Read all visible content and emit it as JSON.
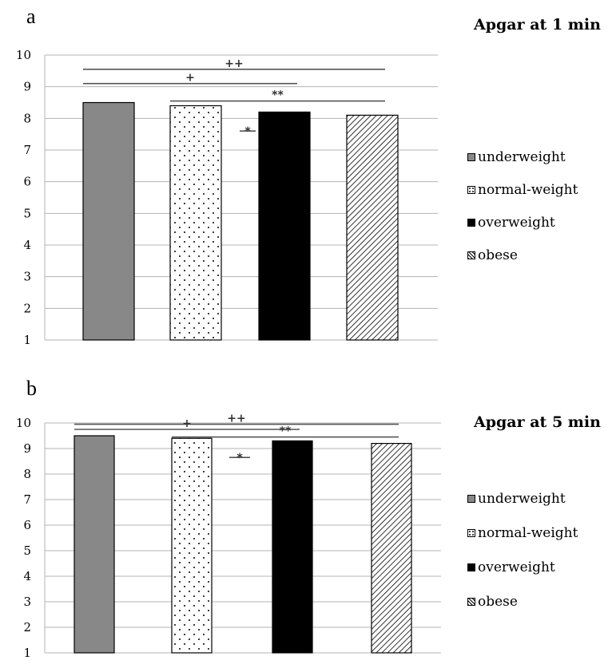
{
  "chart_data": [
    {
      "type": "bar",
      "panel_label": "a",
      "title": "Apgar at 1 min",
      "categories": [
        "underweight",
        "normal-weight",
        "overweight",
        "obese"
      ],
      "values": [
        8.5,
        8.4,
        8.2,
        8.1
      ],
      "ylim": [
        1,
        10
      ],
      "yticks": [
        "1",
        "2",
        "3",
        "4",
        "5",
        "6",
        "7",
        "8",
        "9",
        "10"
      ],
      "xlabel": "",
      "ylabel": "",
      "grid": true,
      "legend_position": "right",
      "legend": [
        "underweight",
        "normal-weight",
        "overweight",
        "obese"
      ],
      "fills": [
        "solid-gray",
        "dots",
        "solid-black",
        "diagonal-hatch"
      ],
      "colors": [
        "#888888",
        "#ffffff",
        "#000000",
        "#ffffff"
      ],
      "annotations": [
        {
          "text": "++",
          "from": "underweight",
          "to": "obese",
          "y": 9.55
        },
        {
          "text": "+",
          "from": "underweight",
          "to": "overweight",
          "y": 9.1
        },
        {
          "text": "**",
          "from": "normal-weight",
          "to": "obese",
          "y": 8.55
        },
        {
          "text": "*",
          "between": [
            "normal-weight",
            "overweight"
          ],
          "y": 7.6
        }
      ]
    },
    {
      "type": "bar",
      "panel_label": "b",
      "title": "Apgar at 5 min",
      "categories": [
        "underweight",
        "normal-weight",
        "overweight",
        "obese"
      ],
      "values": [
        9.5,
        9.4,
        9.3,
        9.2
      ],
      "ylim": [
        1,
        10
      ],
      "yticks": [
        "1",
        "2",
        "3",
        "4",
        "5",
        "6",
        "7",
        "8",
        "9",
        "10"
      ],
      "xlabel": "",
      "ylabel": "",
      "grid": true,
      "legend_position": "right",
      "legend": [
        "underweight",
        "normal-weight",
        "overweight",
        "obese"
      ],
      "fills": [
        "solid-gray",
        "dots",
        "solid-black",
        "diagonal-hatch"
      ],
      "colors": [
        "#888888",
        "#ffffff",
        "#000000",
        "#ffffff"
      ],
      "annotations": [
        {
          "text": "++",
          "from": "underweight",
          "to": "obese",
          "y": 9.95
        },
        {
          "text": "+",
          "from": "underweight",
          "to": "overweight",
          "y": 9.75
        },
        {
          "text": "**",
          "from": "normal-weight",
          "to": "obese",
          "y": 9.45
        },
        {
          "text": "*",
          "between": [
            "normal-weight",
            "overweight"
          ],
          "y": 8.65
        }
      ]
    }
  ]
}
